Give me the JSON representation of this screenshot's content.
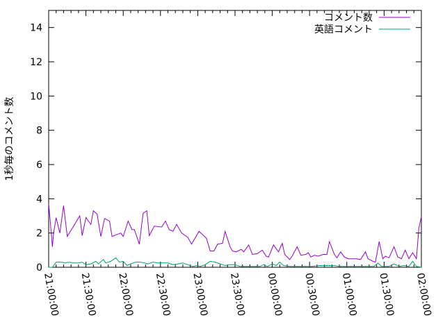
{
  "chart_data": {
    "type": "line",
    "title": "",
    "xlabel": "",
    "ylabel": "1秒毎のコメント数",
    "ylim": [
      0,
      15
    ],
    "xlim": [
      "21:00:00",
      "02:00:00"
    ],
    "yticks": [
      "0",
      "2",
      "4",
      "6",
      "8",
      "10",
      "12",
      "14"
    ],
    "xticks": [
      "21:00:00",
      "21:30:00",
      "22:00:00",
      "22:30:00",
      "23:00:00",
      "23:30:00",
      "00:00:00",
      "00:30:00",
      "01:00:00",
      "01:30:00",
      "02:00:00"
    ],
    "grid": false,
    "legend": "top-right",
    "series": [
      {
        "name": "コメント数",
        "color": "#9400d3",
        "x": [
          "21:00",
          "21:01",
          "21:03",
          "21:04",
          "21:06",
          "21:09",
          "21:12",
          "21:15",
          "21:25",
          "21:27",
          "21:30",
          "21:34",
          "21:36",
          "21:39",
          "21:42",
          "21:45",
          "21:49",
          "21:51",
          "21:58",
          "22:00",
          "22:04",
          "22:07",
          "22:09",
          "22:13",
          "22:16",
          "22:19",
          "22:21",
          "22:25",
          "22:31",
          "22:34",
          "22:37",
          "22:40",
          "22:43",
          "22:47",
          "22:52",
          "22:55",
          "23:01",
          "23:07",
          "23:10",
          "23:13",
          "23:16",
          "23:20",
          "23:22",
          "23:26",
          "23:28",
          "23:31",
          "23:35",
          "23:37",
          "23:41",
          "23:44",
          "23:48",
          "23:52",
          "23:55",
          "23:57",
          "00:01",
          "00:05",
          "00:08",
          "00:10",
          "00:14",
          "00:16",
          "00:20",
          "00:23",
          "00:27",
          "00:29",
          "00:31",
          "00:34",
          "00:37",
          "00:41",
          "00:44",
          "00:46",
          "00:50",
          "00:52",
          "00:55",
          "00:58",
          "01:01",
          "01:08",
          "01:11",
          "01:15",
          "01:17",
          "01:21",
          "01:23",
          "01:26",
          "01:29",
          "01:31",
          "01:34",
          "01:38",
          "01:41",
          "01:44",
          "01:47",
          "01:50",
          "01:53",
          "01:56",
          "01:58",
          "02:00"
        ],
        "y": [
          3.7,
          2.9,
          1.2,
          2.0,
          2.9,
          2.0,
          3.6,
          1.8,
          3.0,
          1.85,
          2.9,
          2.5,
          3.3,
          3.1,
          1.8,
          2.85,
          2.7,
          1.8,
          2.0,
          1.8,
          2.7,
          2.2,
          2.2,
          1.35,
          3.15,
          3.3,
          1.85,
          2.4,
          2.35,
          2.7,
          2.2,
          2.1,
          2.5,
          2.0,
          1.75,
          1.35,
          2.1,
          1.7,
          0.95,
          0.95,
          1.35,
          1.4,
          2.1,
          1.2,
          0.95,
          0.9,
          1.05,
          0.9,
          1.3,
          0.75,
          0.8,
          1.0,
          0.65,
          0.6,
          1.3,
          0.9,
          1.4,
          0.75,
          0.45,
          0.65,
          1.2,
          0.7,
          0.75,
          0.85,
          0.6,
          0.7,
          0.65,
          0.75,
          0.75,
          1.5,
          0.75,
          0.55,
          0.9,
          0.6,
          0.5,
          0.5,
          0.45,
          0.9,
          0.5,
          0.35,
          0.3,
          1.5,
          0.5,
          0.65,
          0.55,
          1.2,
          0.6,
          0.5,
          1.0,
          0.5,
          0.85,
          0.5,
          2.3,
          2.95
        ]
      },
      {
        "name": "英語コメント",
        "color": "#009e73",
        "x": [
          "21:00",
          "21:03",
          "21:06",
          "21:10",
          "21:13",
          "21:16",
          "21:20",
          "21:24",
          "21:27",
          "21:30",
          "21:34",
          "21:38",
          "21:40",
          "21:44",
          "21:46",
          "21:50",
          "21:54",
          "21:57",
          "22:00",
          "22:03",
          "22:06",
          "22:10",
          "22:14",
          "22:17",
          "22:20",
          "22:24",
          "22:28",
          "22:32",
          "22:36",
          "22:40",
          "22:44",
          "22:48",
          "22:52",
          "22:56",
          "22:59",
          "23:02",
          "23:06",
          "23:10",
          "23:14",
          "23:18",
          "23:22",
          "23:26",
          "23:30",
          "23:34",
          "23:38",
          "23:44",
          "23:50",
          "23:53",
          "23:56",
          "00:00",
          "00:03",
          "00:06",
          "00:09",
          "00:14",
          "00:20",
          "00:26",
          "00:32",
          "00:38",
          "00:44",
          "00:50",
          "00:54",
          "00:58",
          "01:04",
          "01:10",
          "01:16",
          "01:22",
          "01:25",
          "01:28",
          "01:34",
          "01:38",
          "01:42",
          "01:46",
          "01:50",
          "01:53",
          "01:56",
          "02:00"
        ],
        "y": [
          0,
          0,
          0.3,
          0.3,
          0.25,
          0.3,
          0.25,
          0.25,
          0.3,
          0.15,
          0.2,
          0.35,
          0.2,
          0.45,
          0.25,
          0.35,
          0.55,
          0.3,
          0.35,
          0.1,
          0.2,
          0.3,
          0.3,
          0.25,
          0.2,
          0.3,
          0.25,
          0.25,
          0.25,
          0.15,
          0.2,
          0.25,
          0.15,
          0.05,
          0.1,
          0.05,
          0.15,
          0.35,
          0.3,
          0.2,
          0.1,
          0.15,
          0.15,
          0.05,
          0.05,
          0.05,
          0.05,
          0.15,
          0.05,
          0.2,
          0.1,
          0.3,
          0.1,
          0.05,
          0.05,
          0.05,
          0.05,
          0.1,
          0.1,
          0.1,
          0.05,
          0.05,
          0.05,
          0.05,
          0.05,
          0.05,
          0.25,
          0.05,
          0.05,
          0.2,
          0.05,
          0.1,
          0.05,
          0.35,
          0.05,
          0
        ]
      }
    ]
  }
}
